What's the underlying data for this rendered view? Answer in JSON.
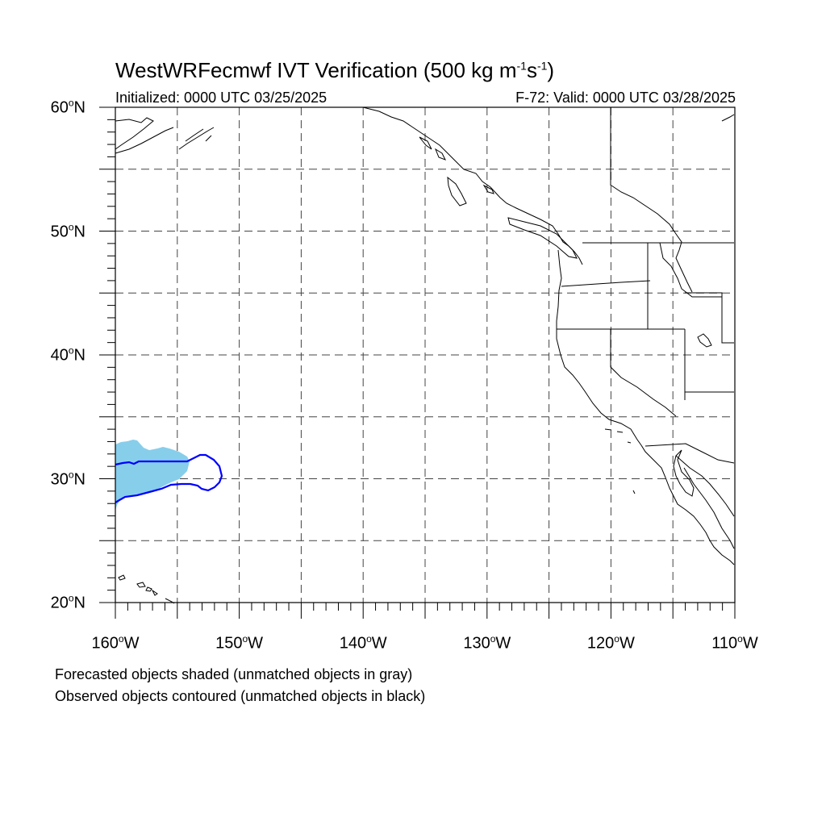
{
  "header": {
    "title_main": "WestWRFecmwf IVT Verification (500 kg m",
    "title_exp1": "-1",
    "title_mid": "s",
    "title_exp2": "-1",
    "title_end": ")",
    "initialized": "Initialized: 0000 UTC 03/25/2025",
    "valid": "F-72: Valid: 0000 UTC 03/28/2025"
  },
  "map": {
    "lon_range": [
      -160,
      -110
    ],
    "lat_range": [
      20,
      60
    ],
    "lat_labels": [
      {
        "lat": 60,
        "num": "60",
        "hem": "N"
      },
      {
        "lat": 50,
        "num": "50",
        "hem": "N"
      },
      {
        "lat": 40,
        "num": "40",
        "hem": "N"
      },
      {
        "lat": 30,
        "num": "30",
        "hem": "N"
      },
      {
        "lat": 20,
        "num": "20",
        "hem": "N"
      }
    ],
    "lon_labels": [
      {
        "lon": -160,
        "num": "160",
        "hem": "W"
      },
      {
        "lon": -150,
        "num": "150",
        "hem": "W"
      },
      {
        "lon": -140,
        "num": "140",
        "hem": "W"
      },
      {
        "lon": -130,
        "num": "130",
        "hem": "W"
      },
      {
        "lon": -120,
        "num": "120",
        "hem": "W"
      },
      {
        "lon": -110,
        "num": "110",
        "hem": "W"
      }
    ],
    "degree_symbol": "o",
    "gridlines": "dashed, every 5 degrees",
    "forecast_object": {
      "color": "#87ceeb",
      "matched": true
    },
    "observed_object": {
      "color": "#0000ff",
      "matched": true
    }
  },
  "notes": {
    "forecast": "Forecasted objects shaded (unmatched objects in gray)",
    "observed": "Observed objects contoured (unmatched objects in black)"
  }
}
